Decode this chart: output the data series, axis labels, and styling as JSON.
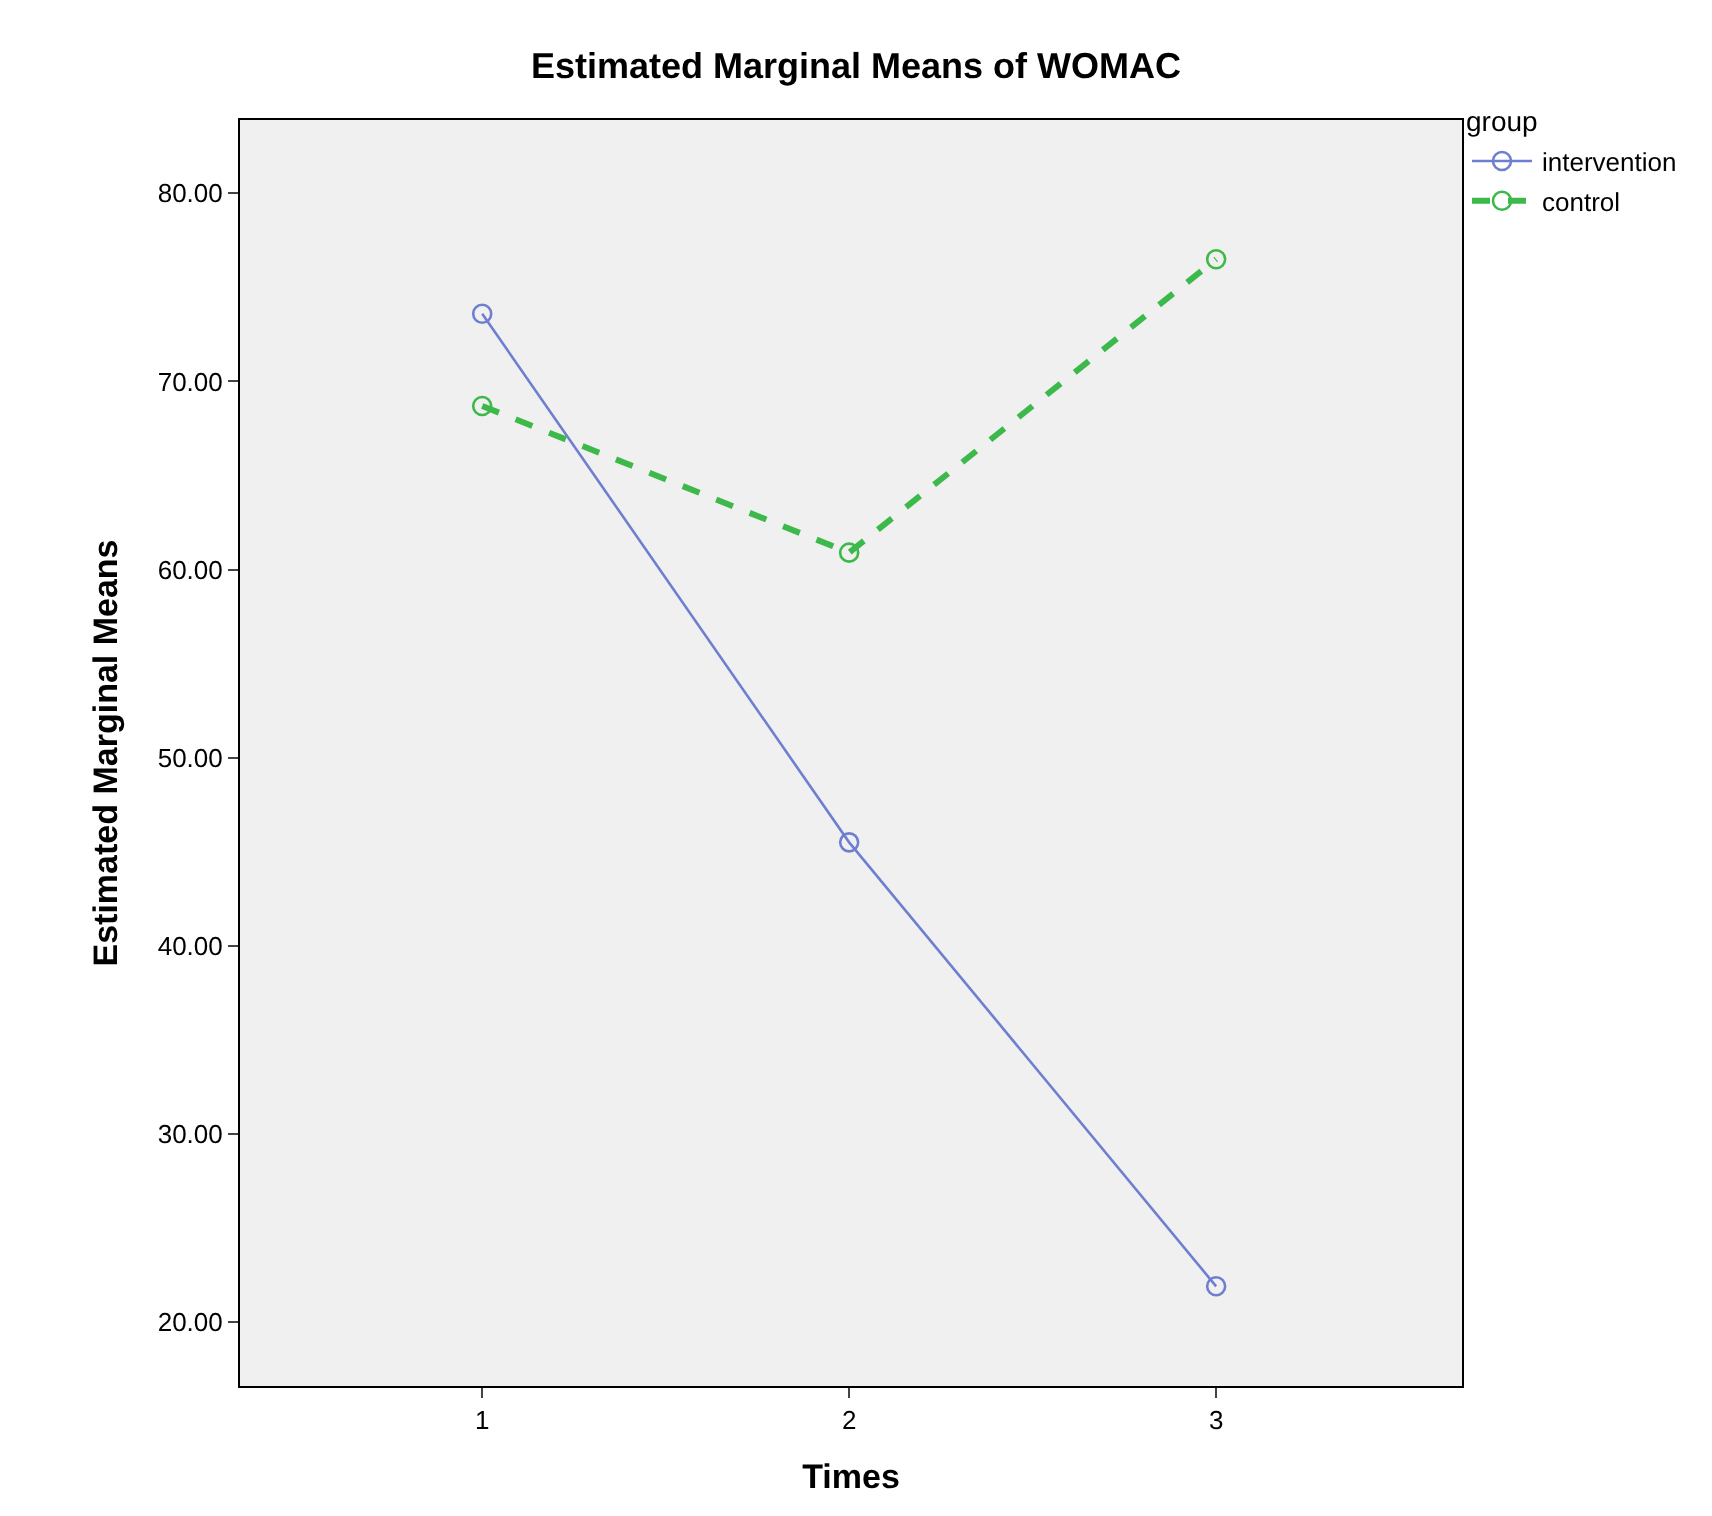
{
  "chart_data": {
    "type": "line",
    "title": "Estimated Marginal Means of WOMAC",
    "xlabel": "Times",
    "ylabel": "Estimated Marginal Means",
    "legend_title": "group",
    "legend": "top right",
    "grid": false,
    "marker": "circle",
    "x": [
      1,
      2,
      3
    ],
    "xlim": [
      0.34,
      3.67
    ],
    "xticks": [
      1,
      2,
      3
    ],
    "ylim": [
      16.6,
      83.9
    ],
    "yticks": [
      {
        "value": 20,
        "label": "20.00"
      },
      {
        "value": 30,
        "label": "30.00"
      },
      {
        "value": 40,
        "label": "40.00"
      },
      {
        "value": 50,
        "label": "50.00"
      },
      {
        "value": 60,
        "label": "60.00"
      },
      {
        "value": 70,
        "label": "70.00"
      },
      {
        "value": 80,
        "label": "80.00"
      }
    ],
    "series": [
      {
        "name": "intervention",
        "color": "#6f7fd0",
        "line_style": "solid",
        "values": [
          73.6,
          45.5,
          21.9
        ]
      },
      {
        "name": "control",
        "color": "#3cb94a",
        "line_style": "dashed",
        "values": [
          68.7,
          60.9,
          76.5
        ]
      }
    ]
  }
}
